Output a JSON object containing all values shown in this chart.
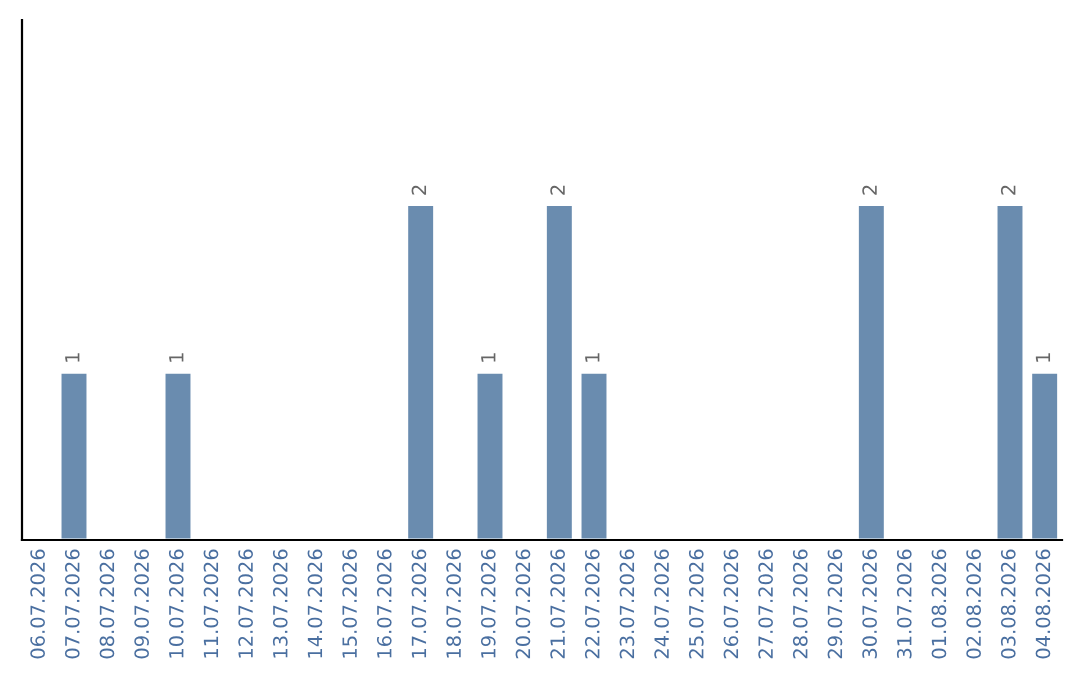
{
  "chart_data": {
    "type": "bar",
    "categories": [
      "06.07.2026",
      "07.07.2026",
      "08.07.2026",
      "09.07.2026",
      "10.07.2026",
      "11.07.2026",
      "12.07.2026",
      "13.07.2026",
      "14.07.2026",
      "15.07.2026",
      "16.07.2026",
      "17.07.2026",
      "18.07.2026",
      "19.07.2026",
      "20.07.2026",
      "21.07.2026",
      "22.07.2026",
      "23.07.2026",
      "24.07.2026",
      "25.07.2026",
      "26.07.2026",
      "27.07.2026",
      "28.07.2026",
      "29.07.2026",
      "30.07.2026",
      "31.07.2026",
      "01.08.2026",
      "02.08.2026",
      "03.08.2026",
      "04.08.2026"
    ],
    "values": [
      null,
      1,
      null,
      null,
      1,
      null,
      null,
      null,
      null,
      null,
      null,
      2,
      null,
      1,
      null,
      2,
      1,
      null,
      null,
      null,
      null,
      null,
      null,
      null,
      2,
      null,
      null,
      null,
      2,
      1
    ],
    "color": "#6a8caf",
    "ylim": [
      0,
      3.1
    ],
    "data_labels": true,
    "tick_labels": "x",
    "grid": false,
    "legend": false
  }
}
